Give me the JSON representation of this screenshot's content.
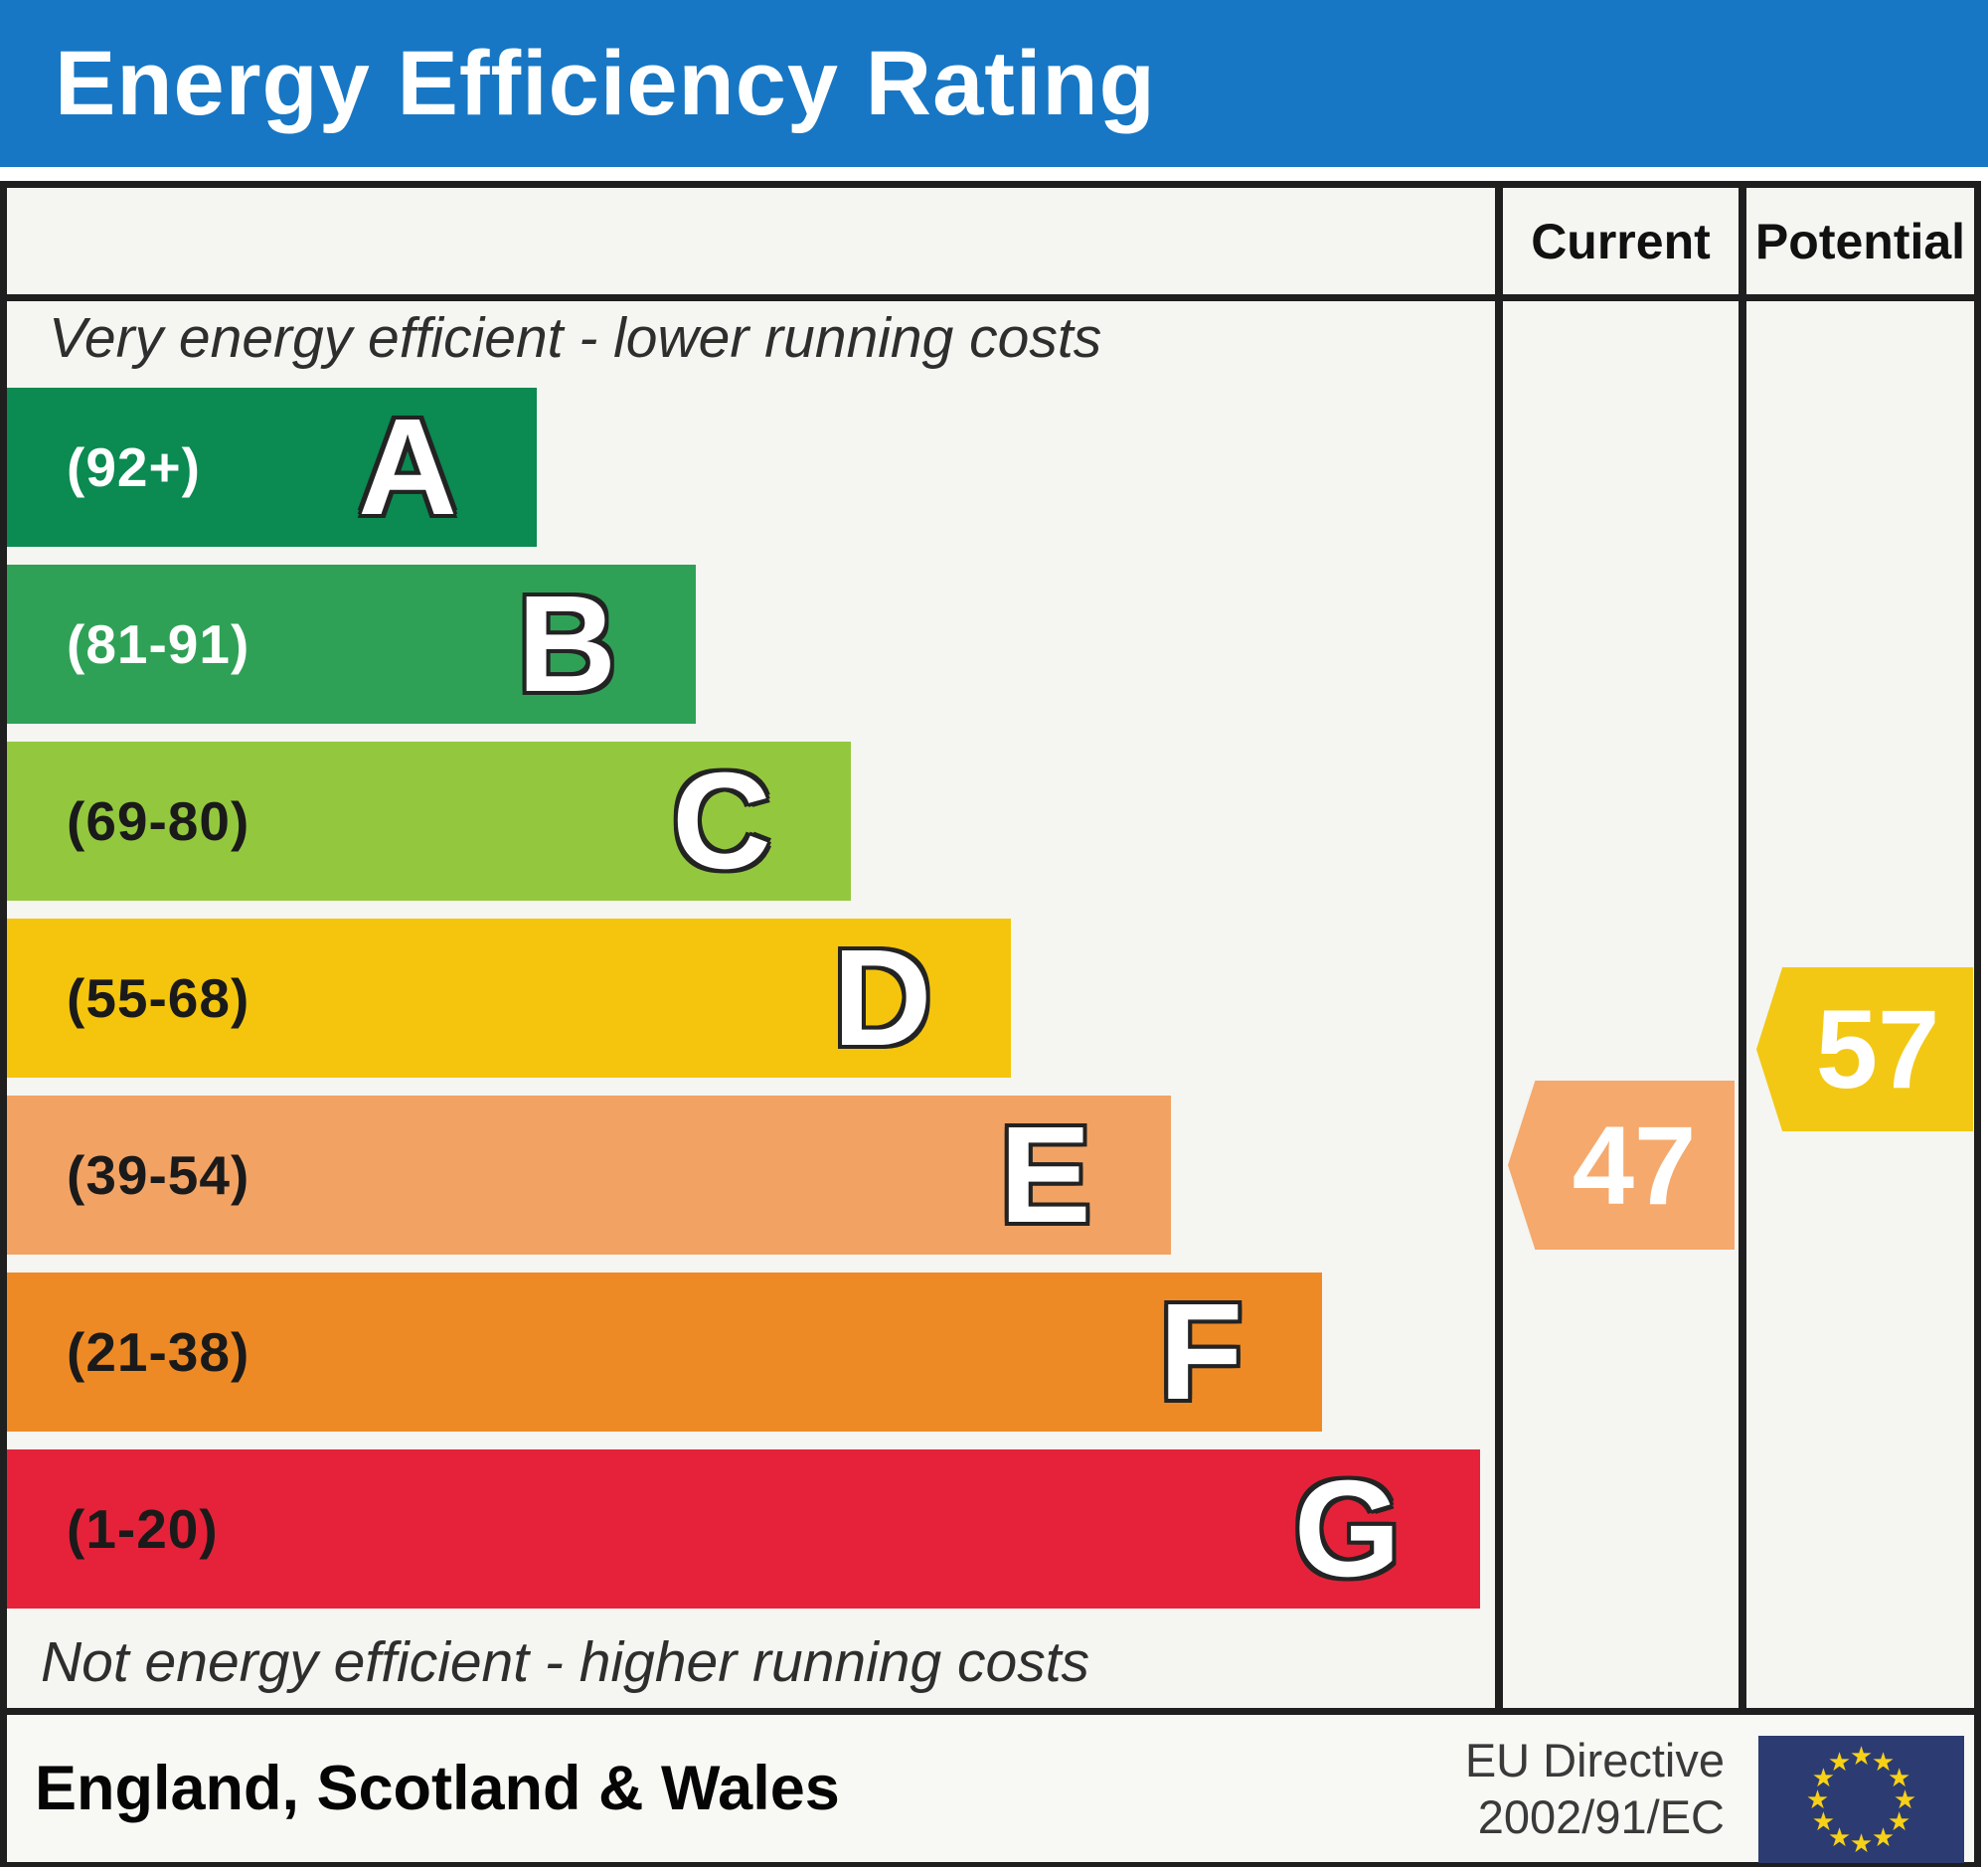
{
  "title": "Energy Efficiency Rating",
  "columns": {
    "current": "Current",
    "potential": "Potential"
  },
  "notes": {
    "top": "Very energy efficient - lower running costs",
    "bottom": "Not energy efficient - higher running costs"
  },
  "footer": {
    "region": "England, Scotland & Wales",
    "directive_line1": "EU Directive",
    "directive_line2": "2002/91/EC",
    "flag_icon": "eu-flag"
  },
  "colors": {
    "title_bar_bg": "#1777c4",
    "title_text": "#ffffff",
    "table_bg": "#f5f5f1",
    "border": "#1f1f1f"
  },
  "chart_data": {
    "type": "bar",
    "orientation": "horizontal",
    "title": "Energy Efficiency Rating",
    "scale_note": "SAP rating bands 1-100, shorter bar = more efficient",
    "categories": [
      "A",
      "B",
      "C",
      "D",
      "E",
      "F",
      "G"
    ],
    "bands": [
      {
        "letter": "A",
        "range_label": "(92+)",
        "range": [
          92,
          100
        ],
        "color": "#0b8a51",
        "range_label_color": "#ffffff",
        "bar_length_pct": 35.6
      },
      {
        "letter": "B",
        "range_label": "(81-91)",
        "range": [
          81,
          91
        ],
        "color": "#2fa156",
        "range_label_color": "#ffffff",
        "bar_length_pct": 46.3
      },
      {
        "letter": "C",
        "range_label": "(69-80)",
        "range": [
          69,
          80
        ],
        "color": "#93c83e",
        "range_label_color": "#1a1a1a",
        "bar_length_pct": 56.7
      },
      {
        "letter": "D",
        "range_label": "(55-68)",
        "range": [
          55,
          68
        ],
        "color": "#f4c50c",
        "range_label_color": "#1a1a1a",
        "bar_length_pct": 67.5
      },
      {
        "letter": "E",
        "range_label": "(39-54)",
        "range": [
          39,
          54
        ],
        "color": "#f2a364",
        "range_label_color": "#1a1a1a",
        "bar_length_pct": 78.2
      },
      {
        "letter": "F",
        "range_label": "(21-38)",
        "range": [
          21,
          38
        ],
        "color": "#ee8a25",
        "range_label_color": "#1a1a1a",
        "bar_length_pct": 88.4
      },
      {
        "letter": "G",
        "range_label": "(1-20)",
        "range": [
          1,
          20
        ],
        "color": "#e5223a",
        "range_label_color": "#1a1a1a",
        "bar_length_pct": 99.0
      }
    ],
    "markers": [
      {
        "name": "Current",
        "value": 47,
        "band": "E",
        "color": "#f5a96c"
      },
      {
        "name": "Potential",
        "value": 57,
        "band": "D",
        "color": "#f2c814"
      }
    ],
    "grid": false,
    "legend_position": "right-columns"
  }
}
